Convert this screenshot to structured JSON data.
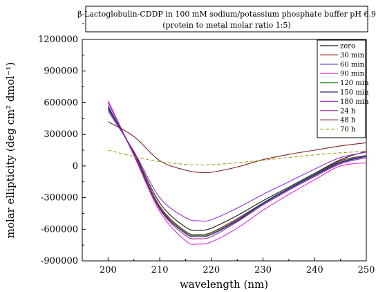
{
  "chart_data": {
    "type": "line",
    "title_lines": [
      "β-Lactoglobulin-CDDP in 100 mM sodium/potassium phosphate buffer pH 6.9",
      "(protein to metal molar ratio 1:5)"
    ],
    "xlabel": "wavelength (nm)",
    "ylabel": "molar ellipticity (deg cm² dmol⁻¹)",
    "xlim": [
      195,
      250
    ],
    "ylim": [
      -900000,
      1200000
    ],
    "xticks": [
      200,
      210,
      220,
      230,
      240,
      250
    ],
    "yticks": [
      -900000,
      -600000,
      -300000,
      0,
      300000,
      600000,
      900000,
      1200000
    ],
    "legend_position": "top-right",
    "x": [
      200,
      205,
      210,
      215,
      217.5,
      220,
      225,
      230,
      235,
      240,
      245,
      250
    ],
    "series": [
      {
        "name": "zero",
        "color": "#1a1a1a",
        "values": [
          540000,
          130000,
          -350000,
          -580000,
          -610000,
          -590000,
          -470000,
          -330000,
          -200000,
          -70000,
          60000,
          140000
        ]
      },
      {
        "name": "30 min",
        "color": "#8b1a1a",
        "values": [
          560000,
          120000,
          -380000,
          -620000,
          -650000,
          -630000,
          -500000,
          -350000,
          -210000,
          -80000,
          50000,
          100000
        ]
      },
      {
        "name": "60 min",
        "color": "#2b2bd0",
        "values": [
          570000,
          110000,
          -400000,
          -640000,
          -670000,
          -650000,
          -520000,
          -360000,
          -220000,
          -90000,
          30000,
          90000
        ]
      },
      {
        "name": "90 min",
        "color": "#e020e0",
        "values": [
          620000,
          100000,
          -430000,
          -710000,
          -740000,
          -720000,
          -590000,
          -420000,
          -270000,
          -130000,
          0,
          30000
        ]
      },
      {
        "name": "120 min",
        "color": "#2e8b2e",
        "values": [
          550000,
          120000,
          -390000,
          -630000,
          -660000,
          -640000,
          -510000,
          -350000,
          -210000,
          -80000,
          40000,
          100000
        ]
      },
      {
        "name": "150 min",
        "color": "#2a2a7a",
        "values": [
          560000,
          115000,
          -400000,
          -640000,
          -670000,
          -650000,
          -515000,
          -355000,
          -215000,
          -85000,
          35000,
          95000
        ]
      },
      {
        "name": "180 min",
        "color": "#9a30d0",
        "values": [
          520000,
          140000,
          -300000,
          -490000,
          -520000,
          -510000,
          -400000,
          -270000,
          -150000,
          -30000,
          80000,
          130000
        ]
      },
      {
        "name": "24 h",
        "color": "#a0208a",
        "values": [
          600000,
          110000,
          -410000,
          -660000,
          -690000,
          -670000,
          -530000,
          -370000,
          -230000,
          -100000,
          20000,
          80000
        ]
      },
      {
        "name": "48 h",
        "color": "#7a1f1f",
        "values": [
          420000,
          280000,
          50000,
          -40000,
          -60000,
          -60000,
          -10000,
          60000,
          110000,
          150000,
          190000,
          220000
        ]
      },
      {
        "name": "70 h",
        "color": "#a0a020",
        "values": [
          150000,
          90000,
          40000,
          15000,
          10000,
          12000,
          30000,
          55000,
          80000,
          105000,
          125000,
          140000
        ]
      }
    ]
  }
}
